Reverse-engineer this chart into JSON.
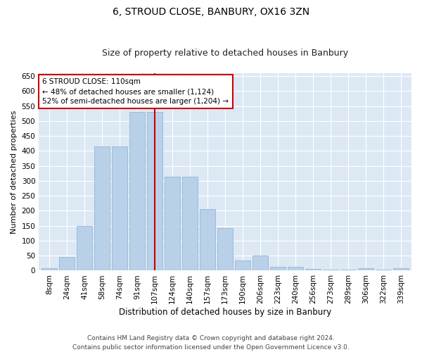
{
  "title": "6, STROUD CLOSE, BANBURY, OX16 3ZN",
  "subtitle": "Size of property relative to detached houses in Banbury",
  "xlabel": "Distribution of detached houses by size in Banbury",
  "ylabel": "Number of detached properties",
  "categories": [
    "8sqm",
    "24sqm",
    "41sqm",
    "58sqm",
    "74sqm",
    "91sqm",
    "107sqm",
    "124sqm",
    "140sqm",
    "157sqm",
    "173sqm",
    "190sqm",
    "206sqm",
    "223sqm",
    "240sqm",
    "256sqm",
    "273sqm",
    "289sqm",
    "306sqm",
    "322sqm",
    "339sqm"
  ],
  "values": [
    7,
    45,
    150,
    415,
    415,
    530,
    530,
    315,
    315,
    205,
    143,
    35,
    50,
    13,
    13,
    6,
    3,
    3,
    7,
    3,
    7
  ],
  "bar_color": "#b8d0e8",
  "bar_edge_color": "#8ab0cc",
  "vline_x_index": 6,
  "vline_color": "#cc0000",
  "annotation_line1": "6 STROUD CLOSE: 110sqm",
  "annotation_line2": "← 48% of detached houses are smaller (1,124)",
  "annotation_line3": "52% of semi-detached houses are larger (1,204) →",
  "annotation_box_color": "#ffffff",
  "annotation_box_edge_color": "#cc0000",
  "ylim": [
    0,
    660
  ],
  "yticks": [
    0,
    50,
    100,
    150,
    200,
    250,
    300,
    350,
    400,
    450,
    500,
    550,
    600,
    650
  ],
  "footer_line1": "Contains HM Land Registry data © Crown copyright and database right 2024.",
  "footer_line2": "Contains public sector information licensed under the Open Government Licence v3.0.",
  "bg_color": "#dde8f5",
  "fig_bg_color": "#ffffff",
  "title_fontsize": 10,
  "subtitle_fontsize": 9,
  "ylabel_fontsize": 8,
  "xlabel_fontsize": 8.5,
  "tick_fontsize": 7.5,
  "footer_fontsize": 6.5,
  "annot_fontsize": 7.5
}
